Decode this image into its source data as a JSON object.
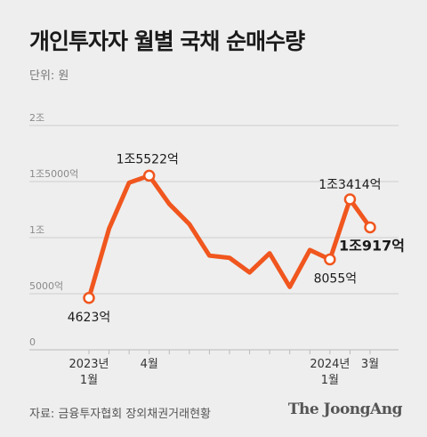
{
  "title": "개인투자자 월별 국채 순매수량",
  "unit_label": "단위: 원",
  "source": "자료: 금융투자협회 장외채권거래현황",
  "brand": "The JoongAng",
  "chart_data": {
    "type": "line",
    "title": "개인투자자 월별 국채 순매수량",
    "ylabel": "",
    "xlabel": "",
    "ylim": [
      0,
      20000
    ],
    "y_ticks": [
      {
        "value": 0,
        "label": "0"
      },
      {
        "value": 5000,
        "label": "5000억"
      },
      {
        "value": 10000,
        "label": "1조"
      },
      {
        "value": 15000,
        "label": "1조5000억"
      },
      {
        "value": 20000,
        "label": "2조"
      }
    ],
    "x_ticks": [
      {
        "index": 0,
        "line1": "2023년",
        "line2": "1월"
      },
      {
        "index": 3,
        "line1": "4월",
        "line2": ""
      },
      {
        "index": 12,
        "line1": "2024년",
        "line2": "1월"
      },
      {
        "index": 14,
        "line1": "3월",
        "line2": ""
      }
    ],
    "x": [
      "2023-01",
      "2023-02",
      "2023-03",
      "2023-04",
      "2023-05",
      "2023-06",
      "2023-07",
      "2023-08",
      "2023-09",
      "2023-10",
      "2023-11",
      "2023-12",
      "2024-01",
      "2024-02",
      "2024-03"
    ],
    "values": [
      4623,
      10800,
      14900,
      15522,
      13000,
      11200,
      8400,
      8200,
      6900,
      8600,
      5600,
      8900,
      8055,
      13414,
      10917
    ],
    "annotations": [
      {
        "index": 0,
        "text": "4623억",
        "bold": false
      },
      {
        "index": 3,
        "text": "1조5522억",
        "bold": false
      },
      {
        "index": 12,
        "text": "8055억",
        "bold": false
      },
      {
        "index": 13,
        "text": "1조3414억",
        "bold": false
      },
      {
        "index": 14,
        "text": "1조917억",
        "bold": true
      }
    ],
    "line_color": "#f0561e",
    "grid": true
  }
}
